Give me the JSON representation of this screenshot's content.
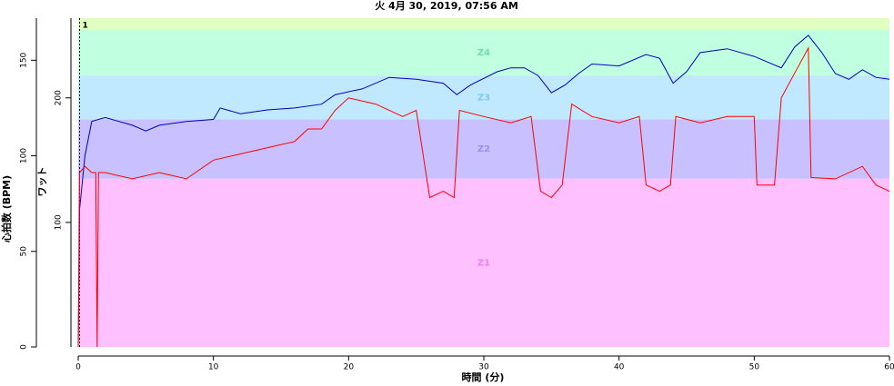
{
  "chart_data": {
    "type": "line",
    "title": "火 4月 30, 2019, 07:56 AM",
    "x_label": "時間 (分)",
    "y_label": "心拍数 (BPM)",
    "y2_label": "ワット",
    "xlim": [
      0,
      60
    ],
    "xticks": [
      0,
      10,
      20,
      30,
      40,
      50,
      60
    ],
    "ylim": [
      0,
      172
    ],
    "yticks": [
      0,
      50,
      100,
      150
    ],
    "y2lim": [
      0,
      264
    ],
    "y2ticks": [
      100,
      200
    ],
    "zones": [
      {
        "from": 0,
        "to": 88,
        "color": "#ffc0ff",
        "label": "Z1",
        "label_color": "#f080f0"
      },
      {
        "from": 88,
        "to": 119,
        "color": "#c8c0ff",
        "label": "Z2",
        "label_color": "#9c90f0"
      },
      {
        "from": 119,
        "to": 142,
        "color": "#c0e8ff",
        "label": "Z3",
        "label_color": "#80c8f0"
      },
      {
        "from": 142,
        "to": 166,
        "color": "#c0ffe0",
        "label": "Z4",
        "label_color": "#70e0a8"
      },
      {
        "from": 166,
        "to": 172,
        "color": "#e0ffc0",
        "label": null,
        "label_color": null
      }
    ],
    "marker": {
      "x": 0.1,
      "label": "1"
    },
    "series": [
      {
        "color": "#0000c0",
        "axis": "y",
        "x": [
          0,
          0.1,
          0.5,
          1,
          2,
          4,
          5,
          6,
          8,
          10,
          10.5,
          12,
          14,
          16,
          18,
          19,
          21,
          23,
          25,
          27,
          28,
          29,
          31,
          32,
          33,
          34,
          35,
          36,
          37,
          38,
          40,
          42,
          43,
          44,
          45,
          46,
          48,
          50,
          52,
          53,
          54,
          55,
          56,
          57,
          58,
          59,
          60
        ],
        "values": [
          0,
          72,
          100,
          118,
          120,
          116,
          113,
          116,
          118,
          119,
          125,
          122,
          124,
          125,
          127,
          132,
          135,
          141,
          140,
          138,
          132,
          137,
          144,
          146,
          146,
          142,
          133,
          137,
          143,
          148,
          147,
          153,
          151,
          138,
          144,
          154,
          156,
          152,
          146,
          157,
          163,
          154,
          143,
          140,
          145,
          141,
          140
        ]
      },
      {
        "color": "#ff0000",
        "axis": "y2",
        "x": [
          0,
          0.1,
          0.5,
          1,
          1.3,
          1.4,
          1.5,
          2,
          4,
          6,
          8,
          10,
          12,
          14,
          16,
          17,
          18,
          19,
          20,
          22,
          24,
          25,
          26,
          27,
          27.8,
          28.2,
          30,
          32,
          33.5,
          34.2,
          35,
          35.8,
          36.5,
          38,
          40,
          41.5,
          42,
          43,
          43.8,
          44.2,
          46,
          48,
          50,
          50.2,
          51.5,
          52,
          53,
          54,
          54.2,
          56,
          58,
          59,
          60
        ],
        "values": [
          0,
          140,
          145,
          140,
          140,
          0,
          140,
          140,
          135,
          140,
          135,
          150,
          155,
          160,
          165,
          175,
          175,
          190,
          200,
          195,
          185,
          190,
          120,
          125,
          120,
          190,
          185,
          180,
          185,
          125,
          120,
          130,
          195,
          185,
          180,
          185,
          130,
          125,
          130,
          185,
          180,
          185,
          185,
          130,
          130,
          200,
          220,
          240,
          136,
          135,
          145,
          130,
          125
        ]
      }
    ]
  }
}
